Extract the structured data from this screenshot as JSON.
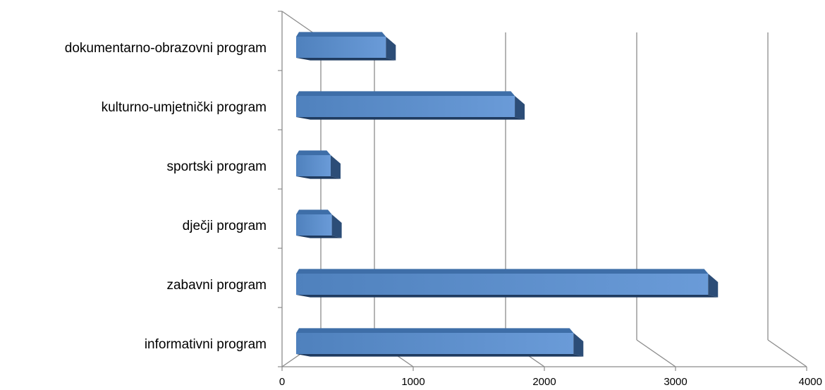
{
  "chart_data": {
    "type": "bar",
    "orientation": "horizontal",
    "style": "3d",
    "categories": [
      "dokumentarno-obrazovni program",
      "kulturno-umjetnički program",
      "sportski program",
      "dječji program",
      "zabavni program",
      "informativni program"
    ],
    "values": [
      780,
      1900,
      300,
      310,
      3580,
      2410
    ],
    "xlim": [
      0,
      4000
    ],
    "x_ticks": [
      "0",
      "1000",
      "2000",
      "3000",
      "4000"
    ],
    "grid": true,
    "legend": "none",
    "colors": {
      "bar_front": "#4f81bd",
      "bar_front_light": "#6a9bd8",
      "bar_top": "#3e6ea8",
      "bar_side": "#2c4d77",
      "bar_bottom": "#1f3b60",
      "grid": "#8c8c8c",
      "axis": "#8c8c8c"
    }
  }
}
